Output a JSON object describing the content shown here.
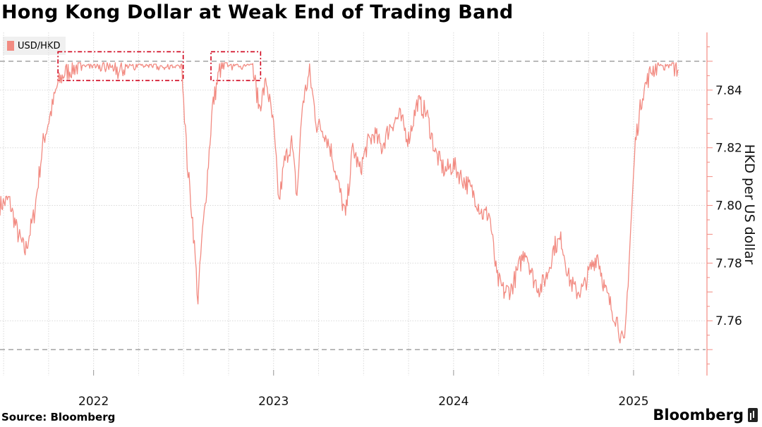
{
  "title": "Hong Kong Dollar at Weak End of Trading Band",
  "source": "Source: Bloomberg",
  "brand": "Bloomberg",
  "colors": {
    "series": "#f28b82",
    "band_line": "#aaaaaa",
    "highlight_box": "#d0021b",
    "grid": "#d9d9d9",
    "axis": "#f28b82"
  },
  "chart_data": {
    "type": "line",
    "legend": [
      "USD/HKD"
    ],
    "legend_position": "top-left",
    "ylabel": "HKD per US dollar",
    "y_axis_side": "right",
    "ylim": [
      7.741,
      7.86
    ],
    "yticks": [
      7.76,
      7.78,
      7.8,
      7.82,
      7.84
    ],
    "ytick_labels": [
      "7.76",
      "7.78",
      "7.80",
      "7.82",
      "7.84"
    ],
    "xlim": [
      2021.48,
      2025.4
    ],
    "xticks": [
      2022,
      2023,
      2024,
      2025
    ],
    "xtick_labels": [
      "2022",
      "2023",
      "2024",
      "2025"
    ],
    "grid": true,
    "reference_lines": [
      7.85,
      7.75
    ],
    "highlight_ranges": [
      [
        2021.81,
        2022.49
      ],
      [
        2022.66,
        2022.92
      ]
    ],
    "series": [
      {
        "name": "USD/HKD",
        "x": [
          2021.48,
          2021.53,
          2021.58,
          2021.62,
          2021.67,
          2021.72,
          2021.77,
          2021.8,
          2021.84,
          2021.9,
          2021.96,
          2022.02,
          2022.08,
          2022.11,
          2022.14,
          2022.2,
          2022.26,
          2022.32,
          2022.38,
          2022.44,
          2022.49,
          2022.52,
          2022.55,
          2022.58,
          2022.6,
          2022.62,
          2022.66,
          2022.7,
          2022.76,
          2022.82,
          2022.88,
          2022.92,
          2022.96,
          2023.0,
          2023.03,
          2023.06,
          2023.1,
          2023.13,
          2023.16,
          2023.2,
          2023.24,
          2023.28,
          2023.32,
          2023.36,
          2023.4,
          2023.44,
          2023.48,
          2023.52,
          2023.56,
          2023.6,
          2023.65,
          2023.7,
          2023.75,
          2023.8,
          2023.85,
          2023.9,
          2023.95,
          2024.0,
          2024.04,
          2024.08,
          2024.12,
          2024.16,
          2024.2,
          2024.24,
          2024.28,
          2024.32,
          2024.36,
          2024.4,
          2024.44,
          2024.48,
          2024.52,
          2024.56,
          2024.6,
          2024.64,
          2024.68,
          2024.72,
          2024.76,
          2024.8,
          2024.84,
          2024.88,
          2024.91,
          2024.93,
          2024.95,
          2024.98,
          2025.01,
          2025.05,
          2025.1,
          2025.15,
          2025.2,
          2025.25
        ],
        "values": [
          7.8,
          7.802,
          7.79,
          7.784,
          7.797,
          7.822,
          7.834,
          7.842,
          7.846,
          7.848,
          7.849,
          7.849,
          7.848,
          7.849,
          7.846,
          7.849,
          7.849,
          7.849,
          7.849,
          7.849,
          7.849,
          7.815,
          7.795,
          7.767,
          7.787,
          7.8,
          7.834,
          7.847,
          7.849,
          7.849,
          7.849,
          7.834,
          7.843,
          7.827,
          7.801,
          7.815,
          7.822,
          7.803,
          7.835,
          7.846,
          7.828,
          7.826,
          7.819,
          7.807,
          7.796,
          7.82,
          7.812,
          7.821,
          7.825,
          7.82,
          7.828,
          7.831,
          7.823,
          7.836,
          7.832,
          7.818,
          7.812,
          7.814,
          7.81,
          7.807,
          7.803,
          7.797,
          7.797,
          7.775,
          7.77,
          7.771,
          7.778,
          7.785,
          7.775,
          7.771,
          7.776,
          7.786,
          7.788,
          7.775,
          7.77,
          7.771,
          7.778,
          7.783,
          7.771,
          7.764,
          7.76,
          7.754,
          7.751,
          7.787,
          7.822,
          7.839,
          7.847,
          7.849,
          7.849,
          7.847
        ]
      }
    ]
  }
}
